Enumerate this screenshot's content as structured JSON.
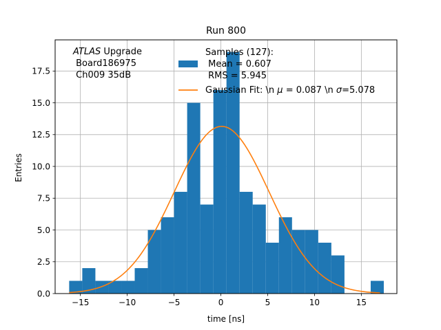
{
  "chart_data": {
    "type": "bar",
    "title": "Run 800",
    "xlabel": "time [ns]",
    "ylabel": "Entries",
    "xlim": [
      -17.7,
      18.8
    ],
    "ylim": [
      0,
      19.95
    ],
    "xticks": [
      -15,
      -10,
      -5,
      0,
      5,
      10,
      15
    ],
    "xtick_labels": [
      "−15",
      "−10",
      "−5",
      "0",
      "5",
      "10",
      "15"
    ],
    "yticks": [
      0,
      2.5,
      5,
      7.5,
      10,
      12.5,
      15,
      17.5
    ],
    "ytick_labels": [
      "0.0",
      "2.5",
      "5.0",
      "7.5",
      "10.0",
      "12.5",
      "15.0",
      "17.5"
    ],
    "grid": true,
    "annotation": {
      "italic": "ATLAS",
      "rest": " Upgrade",
      "lines": [
        " Board186975",
        " Ch009 35dB"
      ]
    },
    "histogram": {
      "name": "Samples",
      "color": "#1f77b4",
      "bin_edges": [
        -16.2,
        -14.8,
        -13.4,
        -12.0,
        -10.6,
        -9.2,
        -7.8,
        -6.4,
        -5.0,
        -3.6,
        -2.2,
        -0.8,
        0.6,
        2.0,
        3.4,
        4.8,
        6.2,
        7.6,
        9.0,
        10.4,
        11.8,
        13.2,
        14.6,
        16.0,
        17.4
      ],
      "counts": [
        1,
        2,
        1,
        1,
        1,
        2,
        5,
        6,
        8,
        15,
        7,
        16,
        19,
        8,
        7,
        4,
        6,
        5,
        5,
        4,
        3,
        0,
        0,
        1
      ],
      "legend_lines": [
        "Samples (127):",
        " Mean = 0.607",
        " RMS = 5.945"
      ]
    },
    "fit": {
      "name": "Gaussian Fit",
      "color": "#ff7f0e",
      "mu": 0.087,
      "sigma": 5.078,
      "amplitude": 13.15,
      "x_range": [
        -16.2,
        17.0
      ],
      "legend_parts": [
        "Gaussian Fit: \\n ",
        "μ",
        " = 0.087 \\n ",
        "σ",
        "=5.078"
      ]
    },
    "legend_position": "top-right"
  }
}
